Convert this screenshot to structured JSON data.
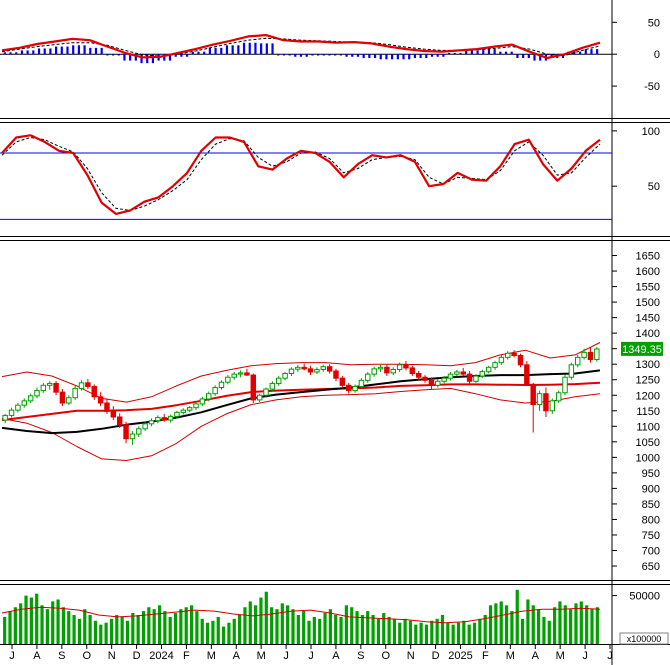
{
  "colors": {
    "background": "#ffffff",
    "panel_border": "#000000",
    "up_candle": "#00a000",
    "down_candle": "#e00000",
    "macd_line": "#e00000",
    "signal_line": "#000000",
    "macd_hist": "#0000ff",
    "stoch_k": "#e00000",
    "stoch_d": "#000000",
    "stoch_band": "#0000ff",
    "bb_band": "#d00000",
    "ma_short": "#e00000",
    "ma_long": "#000000",
    "volume_bar": "#00a000",
    "volume_ma": "#d00000",
    "price_label_bg": "#00a000",
    "price_label_text": "#ffffff"
  },
  "x_axis": {
    "month_labels": [
      "J",
      "A",
      "S",
      "O",
      "N",
      "D",
      "2024",
      "F",
      "M",
      "A",
      "M",
      "J",
      "J",
      "A",
      "S",
      "O",
      "N",
      "D",
      "2025",
      "F",
      "M",
      "A",
      "M",
      "J",
      "J"
    ]
  },
  "chart_data": [
    {
      "type": "line",
      "panel": "macd",
      "y_ticks": [
        50,
        0,
        -50
      ],
      "ylim": [
        -100,
        85
      ],
      "series": [
        {
          "values": [
            6,
            10,
            16,
            20,
            24,
            22,
            12,
            2,
            -5,
            -4,
            2,
            8,
            15,
            21,
            28,
            30,
            22,
            20,
            20,
            18,
            19,
            17,
            12,
            8,
            5,
            4,
            6,
            8,
            12,
            15,
            4,
            -6,
            0,
            10,
            18
          ]
        },
        {
          "values": [
            4,
            8,
            12,
            15,
            18,
            18,
            14,
            6,
            -1,
            -3,
            0,
            5,
            11,
            17,
            22,
            25,
            24,
            22,
            21,
            20,
            19,
            18,
            15,
            11,
            8,
            6,
            6,
            7,
            9,
            12,
            8,
            0,
            -2,
            6,
            13
          ]
        },
        {
          "values": [
            3,
            6,
            9,
            12,
            14,
            10,
            -2,
            -10,
            -14,
            -10,
            -4,
            4,
            10,
            14,
            18,
            17,
            -2,
            -4,
            -2,
            -2,
            -4,
            -6,
            -8,
            -8,
            -6,
            -4,
            2,
            6,
            8,
            4,
            -6,
            -10,
            -6,
            4,
            8
          ]
        }
      ]
    },
    {
      "type": "line",
      "panel": "stochastic",
      "y_ticks": [
        100,
        50
      ],
      "bands": [
        80,
        20
      ],
      "ylim": [
        5,
        108
      ],
      "series": [
        {
          "values": [
            80,
            94,
            96,
            90,
            82,
            80,
            60,
            35,
            25,
            28,
            36,
            40,
            50,
            62,
            82,
            94,
            94,
            90,
            68,
            65,
            75,
            82,
            80,
            72,
            58,
            70,
            78,
            76,
            78,
            72,
            50,
            52,
            62,
            56,
            55,
            68,
            88,
            92,
            70,
            55,
            66,
            82,
            92
          ]
        },
        {
          "values": [
            78,
            90,
            94,
            92,
            86,
            81,
            66,
            44,
            30,
            28,
            32,
            38,
            46,
            56,
            74,
            88,
            93,
            91,
            76,
            68,
            72,
            80,
            81,
            75,
            62,
            66,
            74,
            76,
            77,
            74,
            58,
            52,
            58,
            57,
            56,
            64,
            82,
            90,
            78,
            60,
            62,
            76,
            88
          ]
        }
      ]
    },
    {
      "type": "candlestick",
      "panel": "price",
      "y_ticks": [
        650,
        700,
        750,
        800,
        850,
        900,
        950,
        1000,
        1050,
        1100,
        1150,
        1200,
        1250,
        1300,
        1350,
        1400,
        1450,
        1500,
        1550,
        1600,
        1650
      ],
      "ylim": [
        605,
        1700
      ],
      "last_price": "1349.35",
      "candles": [
        [
          1120,
          1140,
          1110,
          1135
        ],
        [
          1135,
          1160,
          1128,
          1152
        ],
        [
          1152,
          1175,
          1145,
          1168
        ],
        [
          1168,
          1190,
          1160,
          1182
        ],
        [
          1182,
          1205,
          1175,
          1198
        ],
        [
          1198,
          1225,
          1190,
          1215
        ],
        [
          1215,
          1240,
          1208,
          1232
        ],
        [
          1232,
          1245,
          1218,
          1238
        ],
        [
          1238,
          1246,
          1200,
          1210
        ],
        [
          1210,
          1220,
          1165,
          1175
        ],
        [
          1175,
          1200,
          1168,
          1192
        ],
        [
          1192,
          1230,
          1185,
          1222
        ],
        [
          1222,
          1248,
          1215,
          1240
        ],
        [
          1240,
          1252,
          1220,
          1228
        ],
        [
          1228,
          1235,
          1185,
          1195
        ],
        [
          1195,
          1210,
          1165,
          1175
        ],
        [
          1175,
          1190,
          1140,
          1148
        ],
        [
          1148,
          1165,
          1120,
          1130
        ],
        [
          1130,
          1142,
          1095,
          1105
        ],
        [
          1105,
          1115,
          1045,
          1060
        ],
        [
          1060,
          1085,
          1040,
          1075
        ],
        [
          1075,
          1100,
          1065,
          1092
        ],
        [
          1092,
          1115,
          1085,
          1108
        ],
        [
          1108,
          1125,
          1100,
          1118
        ],
        [
          1118,
          1135,
          1110,
          1128
        ],
        [
          1128,
          1140,
          1115,
          1120
        ],
        [
          1120,
          1138,
          1112,
          1132
        ],
        [
          1132,
          1150,
          1125,
          1145
        ],
        [
          1145,
          1158,
          1138,
          1152
        ],
        [
          1152,
          1165,
          1145,
          1160
        ],
        [
          1160,
          1178,
          1152,
          1172
        ],
        [
          1172,
          1195,
          1165,
          1188
        ],
        [
          1188,
          1212,
          1180,
          1205
        ],
        [
          1205,
          1232,
          1198,
          1225
        ],
        [
          1225,
          1248,
          1218,
          1242
        ],
        [
          1242,
          1265,
          1235,
          1258
        ],
        [
          1258,
          1275,
          1250,
          1268
        ],
        [
          1268,
          1280,
          1258,
          1272
        ],
        [
          1272,
          1285,
          1262,
          1265
        ],
        [
          1265,
          1270,
          1175,
          1185
        ],
        [
          1185,
          1205,
          1178,
          1200
        ],
        [
          1200,
          1225,
          1192,
          1220
        ],
        [
          1220,
          1245,
          1212,
          1238
        ],
        [
          1238,
          1262,
          1230,
          1255
        ],
        [
          1255,
          1275,
          1248,
          1270
        ],
        [
          1270,
          1290,
          1262,
          1284
        ],
        [
          1284,
          1298,
          1275,
          1290
        ],
        [
          1290,
          1302,
          1280,
          1285
        ],
        [
          1285,
          1295,
          1265,
          1275
        ],
        [
          1275,
          1290,
          1268,
          1283
        ],
        [
          1283,
          1298,
          1275,
          1292
        ],
        [
          1292,
          1300,
          1270,
          1278
        ],
        [
          1278,
          1285,
          1245,
          1255
        ],
        [
          1255,
          1262,
          1222,
          1232
        ],
        [
          1232,
          1240,
          1205,
          1215
        ],
        [
          1215,
          1235,
          1208,
          1228
        ],
        [
          1228,
          1255,
          1222,
          1248
        ],
        [
          1248,
          1275,
          1240,
          1268
        ],
        [
          1268,
          1292,
          1260,
          1285
        ],
        [
          1285,
          1298,
          1275,
          1290
        ],
        [
          1290,
          1300,
          1262,
          1272
        ],
        [
          1272,
          1290,
          1265,
          1283
        ],
        [
          1283,
          1305,
          1275,
          1298
        ],
        [
          1298,
          1310,
          1280,
          1288
        ],
        [
          1288,
          1295,
          1262,
          1270
        ],
        [
          1270,
          1278,
          1250,
          1258
        ],
        [
          1258,
          1265,
          1240,
          1248
        ],
        [
          1248,
          1258,
          1220,
          1232
        ],
        [
          1232,
          1252,
          1225,
          1245
        ],
        [
          1245,
          1262,
          1238,
          1255
        ],
        [
          1255,
          1275,
          1248,
          1268
        ],
        [
          1268,
          1282,
          1260,
          1275
        ],
        [
          1275,
          1288,
          1262,
          1268
        ],
        [
          1268,
          1278,
          1235,
          1245
        ],
        [
          1245,
          1268,
          1240,
          1262
        ],
        [
          1262,
          1282,
          1255,
          1276
        ],
        [
          1276,
          1295,
          1270,
          1290
        ],
        [
          1290,
          1310,
          1282,
          1305
        ],
        [
          1305,
          1330,
          1298,
          1322
        ],
        [
          1322,
          1342,
          1315,
          1335
        ],
        [
          1335,
          1345,
          1322,
          1328
        ],
        [
          1328,
          1334,
          1290,
          1298
        ],
        [
          1298,
          1310,
          1230,
          1235
        ],
        [
          1235,
          1240,
          1080,
          1170
        ],
        [
          1170,
          1215,
          1150,
          1205
        ],
        [
          1205,
          1225,
          1130,
          1150
        ],
        [
          1150,
          1190,
          1140,
          1182
        ],
        [
          1182,
          1215,
          1175,
          1208
        ],
        [
          1208,
          1265,
          1200,
          1258
        ],
        [
          1258,
          1305,
          1250,
          1298
        ],
        [
          1298,
          1330,
          1290,
          1322
        ],
        [
          1322,
          1350,
          1315,
          1338
        ],
        [
          1338,
          1355,
          1305,
          1315
        ],
        [
          1315,
          1355,
          1308,
          1349
        ]
      ],
      "series": [
        {
          "values": [
            1260,
            1275,
            1262,
            1230,
            1190,
            1178,
            1195,
            1230,
            1262,
            1280,
            1295,
            1302,
            1305,
            1305,
            1298,
            1300,
            1300,
            1298,
            1295,
            1305,
            1330,
            1345,
            1320,
            1330,
            1370
          ]
        },
        {
          "values": [
            1125,
            1110,
            1080,
            1035,
            995,
            990,
            1005,
            1045,
            1100,
            1140,
            1170,
            1185,
            1195,
            1200,
            1202,
            1205,
            1212,
            1218,
            1222,
            1205,
            1185,
            1175,
            1180,
            1195,
            1205
          ]
        },
        {
          "values": [
            1120,
            1130,
            1140,
            1150,
            1150,
            1152,
            1156,
            1168,
            1182,
            1198,
            1210,
            1215,
            1218,
            1220,
            1222,
            1225,
            1230,
            1232,
            1235,
            1235,
            1234,
            1233,
            1234,
            1236,
            1240
          ]
        },
        {
          "values": [
            1095,
            1085,
            1078,
            1082,
            1092,
            1105,
            1115,
            1128,
            1145,
            1168,
            1190,
            1202,
            1210,
            1218,
            1225,
            1235,
            1245,
            1252,
            1258,
            1262,
            1265,
            1265,
            1268,
            1270,
            1280
          ]
        }
      ]
    },
    {
      "type": "bar",
      "panel": "volume",
      "unit": "x100000",
      "y_ticks": [
        50000
      ],
      "ylim": [
        0,
        62000
      ],
      "values": [
        28000,
        34000,
        38000,
        42000,
        50000,
        48000,
        52000,
        40000,
        36000,
        44000,
        46000,
        38000,
        34000,
        30000,
        26000,
        36000,
        30000,
        24000,
        20000,
        22000,
        26000,
        30000,
        28000,
        24000,
        32000,
        30000,
        34000,
        38000,
        36000,
        40000,
        34000,
        28000,
        32000,
        36000,
        38000,
        40000,
        34000,
        26000,
        22000,
        24000,
        28000,
        18000,
        22000,
        26000,
        30000,
        38000,
        44000,
        40000,
        48000,
        54000,
        38000,
        36000,
        42000,
        40000,
        36000,
        30000,
        34000,
        24000,
        28000,
        26000,
        32000,
        36000,
        30000,
        28000,
        40000,
        38000,
        34000,
        30000,
        34000,
        30000,
        26000,
        32000,
        28000,
        26000,
        22000,
        26000,
        24000,
        20000,
        22000,
        20000,
        24000,
        26000,
        30000,
        22000,
        20000,
        22000,
        24000,
        20000,
        22000,
        26000,
        30000,
        40000,
        42000,
        44000,
        40000,
        34000,
        56000,
        26000,
        46000,
        40000,
        36000,
        28000,
        24000,
        38000,
        44000,
        40000,
        36000,
        42000,
        44000,
        40000,
        36000,
        38000
      ],
      "series": [
        {
          "values": [
            32000,
            36000,
            38000,
            37000,
            35000,
            30000,
            28000,
            29000,
            31000,
            33000,
            35000,
            34000,
            31000,
            29000,
            31000,
            34000,
            35000,
            32000,
            28000,
            27000,
            26000,
            25000,
            23000,
            22000,
            23000,
            26000,
            30000,
            34000,
            36000,
            36000,
            37000,
            36000
          ]
        }
      ]
    }
  ]
}
